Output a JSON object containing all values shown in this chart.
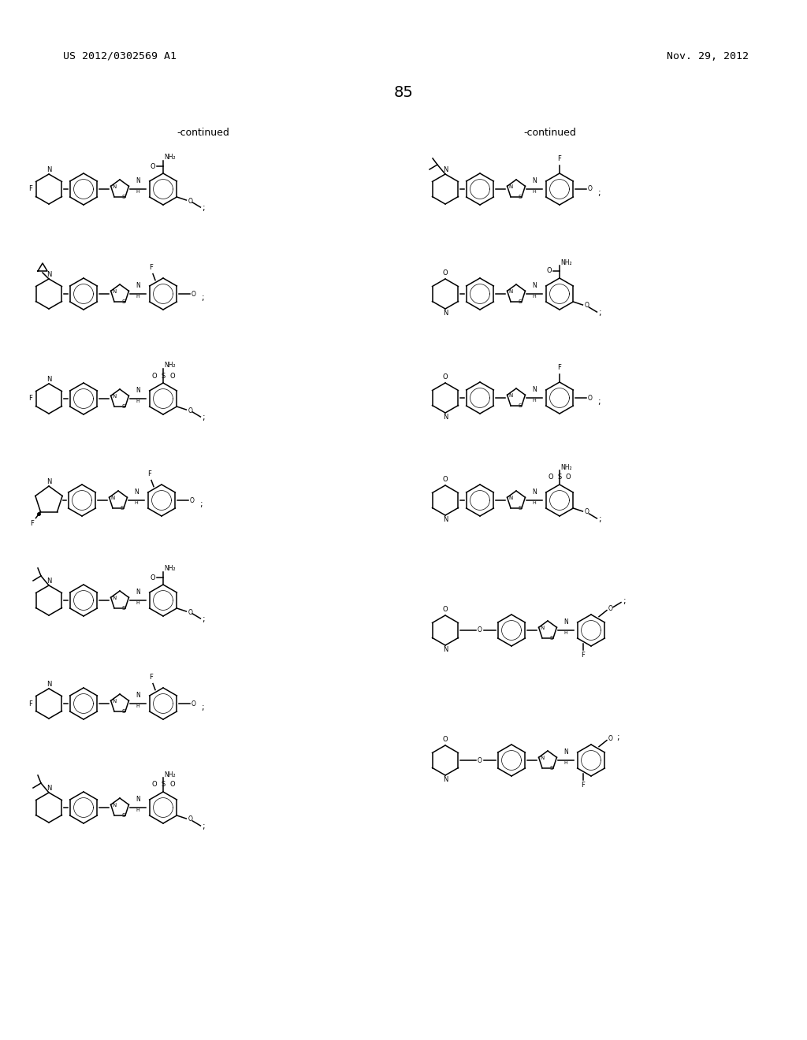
{
  "patent_number": "US 2012/0302569 A1",
  "date": "Nov. 29, 2012",
  "page_number": "85",
  "continued_left": "-continued",
  "continued_right": "-continued",
  "bg_color": "#ffffff",
  "text_color": "#000000"
}
